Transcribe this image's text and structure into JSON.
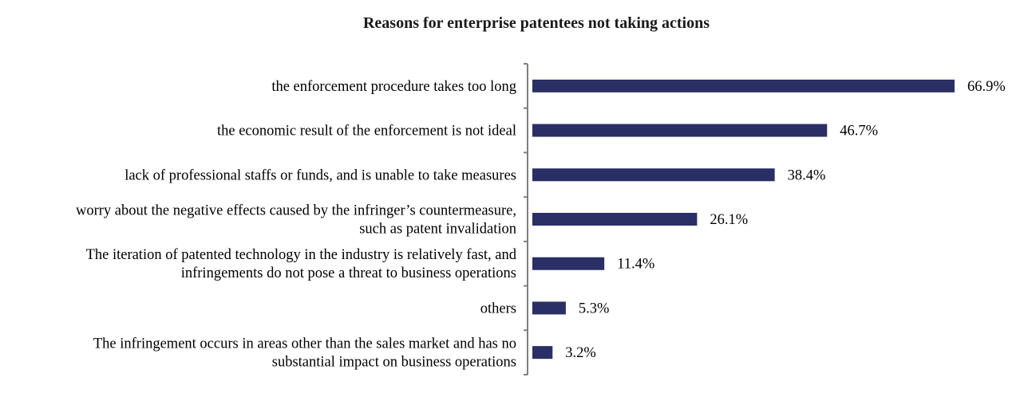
{
  "chart_data": {
    "type": "bar",
    "orientation": "horizontal",
    "title": "Reasons for enterprise patentees not taking actions",
    "bar_color": "#2a2f66",
    "categories": [
      [
        "the enforcement procedure takes too long"
      ],
      [
        "the economic result of the enforcement is not ideal"
      ],
      [
        "lack of professional staffs or funds, and is unable to take measures"
      ],
      [
        "worry about the negative effects caused by the infringer’s countermeasure,",
        "such as patent invalidation"
      ],
      [
        "The iteration of patented technology in the industry is relatively fast, and",
        "infringements do not pose a threat to business operations"
      ],
      [
        "others"
      ],
      [
        "The infringement occurs in areas other than the sales market and has no",
        "substantial impact on business operations"
      ]
    ],
    "values": [
      66.9,
      46.7,
      38.4,
      26.1,
      11.4,
      5.3,
      3.2
    ],
    "value_labels": [
      "66.9%",
      "46.7%",
      "38.4%",
      "26.1%",
      "11.4%",
      "5.3%",
      "3.2%"
    ],
    "xlim": [
      0,
      66.9
    ],
    "grid": false,
    "legend": "none"
  }
}
